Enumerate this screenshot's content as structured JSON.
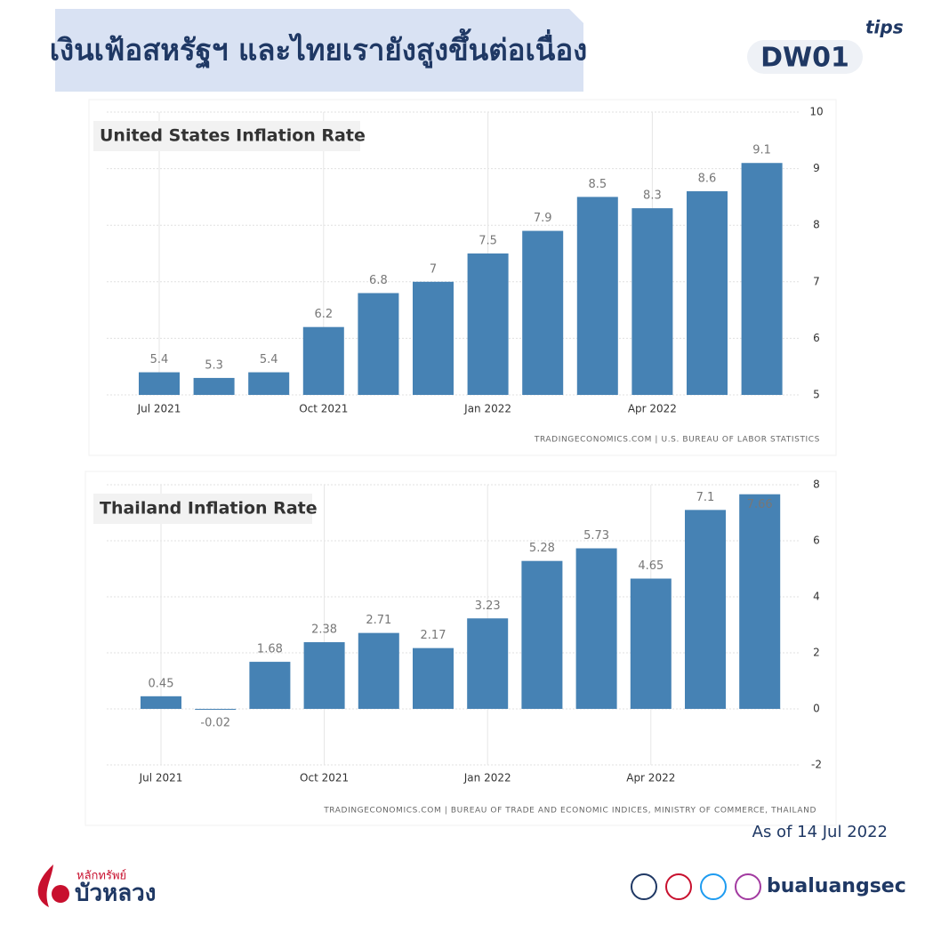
{
  "header": {
    "title": "เงินเฟ้อสหรัฐฯ และไทยเรายังสูงขึ้นต่อเนื่อง",
    "tag": "tips",
    "brand": "DW01"
  },
  "chart_data": [
    {
      "type": "bar",
      "title": "United States Inflation Rate",
      "categories": [
        "Jul 2021",
        null,
        null,
        "Oct 2021",
        null,
        null,
        "Jan 2022",
        null,
        null,
        "Apr 2022",
        null,
        null
      ],
      "values": [
        5.4,
        5.3,
        5.4,
        6.2,
        6.8,
        7,
        7.5,
        7.9,
        8.5,
        8.3,
        8.6,
        9.1
      ],
      "color": "#4682b4",
      "ylim": [
        5,
        10
      ],
      "yticks": [
        5,
        6,
        7,
        8,
        9,
        10
      ],
      "grid": true,
      "source": "TRADINGECONOMICS.COM | U.S. BUREAU OF LABOR STATISTICS"
    },
    {
      "type": "bar",
      "title": "Thailand Inflation Rate",
      "categories": [
        "Jul 2021",
        null,
        null,
        "Oct 2021",
        null,
        null,
        "Jan 2022",
        null,
        null,
        "Apr 2022",
        null,
        null
      ],
      "values": [
        0.45,
        -0.02,
        1.68,
        2.38,
        2.71,
        2.17,
        3.23,
        5.28,
        5.73,
        4.65,
        7.1,
        7.66
      ],
      "color": "#4682b4",
      "ylim": [
        -2,
        8
      ],
      "yticks": [
        -2,
        0,
        2,
        4,
        6,
        8
      ],
      "grid": true,
      "source": "TRADINGECONOMICS.COM | BUREAU OF TRADE AND ECONOMIC INDICES, MINISTRY OF COMMERCE, THAILAND"
    }
  ],
  "footer": {
    "date": "As of 14 Jul 2022",
    "logo_top": "หลักทรัพย์",
    "logo_name": "บัวหลวง",
    "social": "bualuangsec"
  }
}
